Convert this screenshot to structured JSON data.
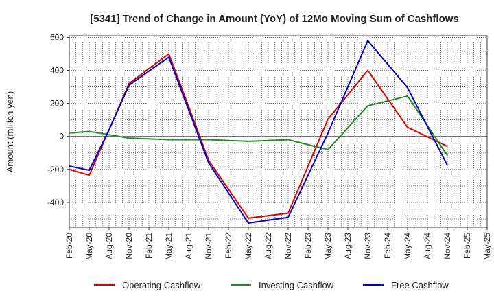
{
  "chart_data": {
    "type": "line",
    "title": "[5341]  Trend of Change in Amount (YoY) of 12Mo Moving Sum of Cashflows",
    "xlabel": "",
    "ylabel": "Amount (million yen)",
    "ylim": [
      -550,
      610
    ],
    "yticks": [
      600,
      400,
      200,
      0,
      -200,
      -400
    ],
    "categories": [
      "Feb-20",
      "May-20",
      "Aug-20",
      "Nov-20",
      "Feb-21",
      "May-21",
      "Aug-21",
      "Nov-21",
      "Feb-22",
      "May-22",
      "Aug-22",
      "Nov-22",
      "Feb-23",
      "May-23",
      "Aug-23",
      "Nov-23",
      "Feb-24",
      "May-24",
      "Aug-24",
      "Nov-24",
      "Feb-25",
      "May-25"
    ],
    "grid": true,
    "legend_position": "bottom",
    "series": [
      {
        "name": "Operating Cashflow",
        "color": "#dd0000",
        "values": [
          -200,
          -235,
          40,
          320,
          410,
          500,
          180,
          -145,
          null,
          -495,
          null,
          -465,
          null,
          105,
          null,
          400,
          null,
          55,
          null,
          -60,
          null,
          null
        ]
      },
      {
        "name": "Investing Cashflow",
        "color": "#228b22",
        "values": [
          20,
          30,
          10,
          -10,
          null,
          -20,
          null,
          -20,
          null,
          -30,
          null,
          -20,
          null,
          -80,
          null,
          185,
          null,
          245,
          null,
          -115,
          null,
          null
        ]
      },
      {
        "name": "Free Cashflow",
        "color": "#0000cc",
        "values": [
          -180,
          -205,
          40,
          310,
          null,
          480,
          null,
          -160,
          null,
          -525,
          null,
          -490,
          null,
          20,
          null,
          580,
          null,
          295,
          null,
          -175,
          null,
          null
        ]
      }
    ]
  }
}
